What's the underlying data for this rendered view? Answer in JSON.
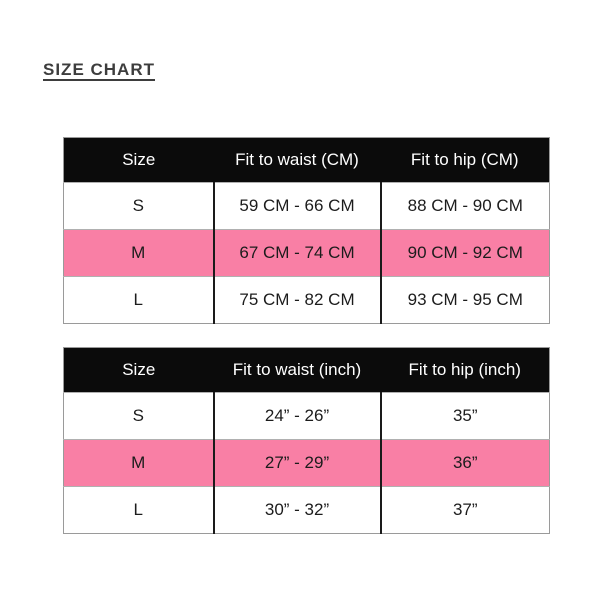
{
  "page": {
    "title": "SIZE CHART"
  },
  "colors": {
    "highlight_pink": "#F97FA5",
    "header_bg": "#0B0B0B",
    "header_text": "#FFFFFF",
    "title_text": "#3D3D3D"
  },
  "tables": [
    {
      "name": "size-chart-cm",
      "headers": [
        "Size",
        "Fit to waist (CM)",
        "Fit to hip (CM)"
      ],
      "rows": [
        {
          "size": "S",
          "waist": "59 CM - 66 CM",
          "hip": "88 CM - 90 CM",
          "highlighted": false
        },
        {
          "size": "M",
          "waist": "67 CM - 74 CM",
          "hip": "90 CM - 92 CM",
          "highlighted": true
        },
        {
          "size": "L",
          "waist": "75 CM - 82 CM",
          "hip": "93 CM - 95 CM",
          "highlighted": false
        }
      ]
    },
    {
      "name": "size-chart-inch",
      "headers": [
        "Size",
        "Fit to waist (inch)",
        "Fit to hip (inch)"
      ],
      "rows": [
        {
          "size": "S",
          "waist": "24” - 26”",
          "hip": "35”",
          "highlighted": false
        },
        {
          "size": "M",
          "waist": "27” - 29”",
          "hip": "36”",
          "highlighted": true
        },
        {
          "size": "L",
          "waist": "30” - 32”",
          "hip": "37”",
          "highlighted": false
        }
      ]
    }
  ]
}
